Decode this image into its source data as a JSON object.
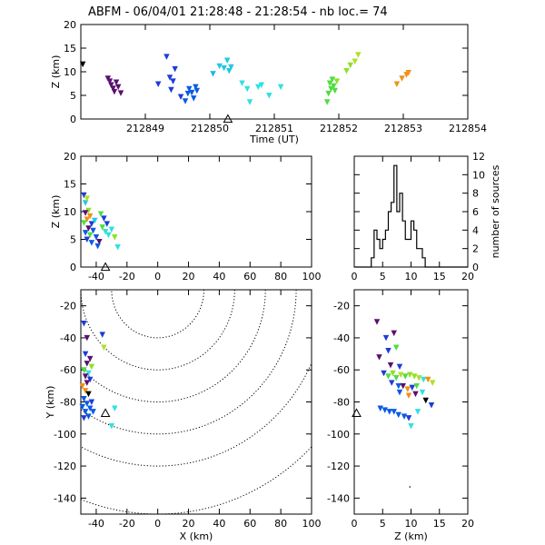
{
  "title": "ABFM - 06/04/01 21:28:48 - 21:28:54 - nb loc.=      74",
  "chart_data": [
    {
      "id": "time_z",
      "type": "scatter",
      "xlabel": "Time (UT)",
      "ylabel": "Z (km)",
      "xlim": [
        212848,
        212854
      ],
      "ylim": [
        0,
        20
      ],
      "xticks": [
        "212849",
        "212850",
        "212851",
        "212852",
        "212853",
        "212854"
      ],
      "yticks": [
        "0",
        "5",
        "10",
        "15",
        "20"
      ],
      "station_x": 212850.28,
      "points": [
        {
          "x": 212848.03,
          "y": 11.6,
          "c": "#000000"
        },
        {
          "x": 212848.42,
          "y": 8.6,
          "c": "#5a1070"
        },
        {
          "x": 212848.45,
          "y": 8.0,
          "c": "#5a1070"
        },
        {
          "x": 212848.47,
          "y": 7.2,
          "c": "#5a1070"
        },
        {
          "x": 212848.5,
          "y": 6.5,
          "c": "#5a1070"
        },
        {
          "x": 212848.52,
          "y": 5.8,
          "c": "#5a1070"
        },
        {
          "x": 212848.55,
          "y": 7.8,
          "c": "#5a1070"
        },
        {
          "x": 212848.58,
          "y": 6.8,
          "c": "#5a1070"
        },
        {
          "x": 212848.62,
          "y": 5.5,
          "c": "#5a1070"
        },
        {
          "x": 212849.2,
          "y": 7.4,
          "c": "#1e3cd8"
        },
        {
          "x": 212849.33,
          "y": 13.2,
          "c": "#1e3cd8"
        },
        {
          "x": 212849.38,
          "y": 8.8,
          "c": "#1e3cd8"
        },
        {
          "x": 212849.43,
          "y": 8.0,
          "c": "#1e3cd8"
        },
        {
          "x": 212849.4,
          "y": 6.2,
          "c": "#1e3cd8"
        },
        {
          "x": 212849.46,
          "y": 10.6,
          "c": "#1e3cd8"
        },
        {
          "x": 212849.55,
          "y": 4.7,
          "c": "#1e3cd8"
        },
        {
          "x": 212849.62,
          "y": 3.8,
          "c": "#0a5ae6"
        },
        {
          "x": 212849.66,
          "y": 5.4,
          "c": "#0a5ae6"
        },
        {
          "x": 212849.68,
          "y": 6.4,
          "c": "#0a5ae6"
        },
        {
          "x": 212849.72,
          "y": 5.6,
          "c": "#0a5ae6"
        },
        {
          "x": 212849.75,
          "y": 4.4,
          "c": "#0a5ae6"
        },
        {
          "x": 212849.78,
          "y": 6.8,
          "c": "#0a5ae6"
        },
        {
          "x": 212849.8,
          "y": 6.0,
          "c": "#0a5ae6"
        },
        {
          "x": 212850.05,
          "y": 9.6,
          "c": "#20b8e6"
        },
        {
          "x": 212850.15,
          "y": 11.2,
          "c": "#20c8e6"
        },
        {
          "x": 212850.22,
          "y": 10.8,
          "c": "#20c8e6"
        },
        {
          "x": 212850.27,
          "y": 12.4,
          "c": "#20c8e6"
        },
        {
          "x": 212850.3,
          "y": 10.2,
          "c": "#20c8e6"
        },
        {
          "x": 212850.33,
          "y": 11.0,
          "c": "#20c8e6"
        },
        {
          "x": 212850.5,
          "y": 7.6,
          "c": "#30e0e0"
        },
        {
          "x": 212850.58,
          "y": 6.4,
          "c": "#30e0e0"
        },
        {
          "x": 212850.62,
          "y": 3.6,
          "c": "#30e0e0"
        },
        {
          "x": 212850.75,
          "y": 6.8,
          "c": "#30e0e0"
        },
        {
          "x": 212850.8,
          "y": 7.2,
          "c": "#30e0e0"
        },
        {
          "x": 212850.92,
          "y": 5.0,
          "c": "#30e0e0"
        },
        {
          "x": 212851.1,
          "y": 6.8,
          "c": "#30e0e0"
        },
        {
          "x": 212851.82,
          "y": 3.6,
          "c": "#50dc40"
        },
        {
          "x": 212851.84,
          "y": 5.4,
          "c": "#50dc40"
        },
        {
          "x": 212851.86,
          "y": 7.6,
          "c": "#50dc40"
        },
        {
          "x": 212851.88,
          "y": 6.4,
          "c": "#50dc40"
        },
        {
          "x": 212851.9,
          "y": 8.4,
          "c": "#50dc40"
        },
        {
          "x": 212851.92,
          "y": 7.0,
          "c": "#50dc40"
        },
        {
          "x": 212851.94,
          "y": 6.0,
          "c": "#50dc40"
        },
        {
          "x": 212851.97,
          "y": 8.0,
          "c": "#90e028"
        },
        {
          "x": 212852.12,
          "y": 10.2,
          "c": "#90e028"
        },
        {
          "x": 212852.18,
          "y": 11.4,
          "c": "#90e028"
        },
        {
          "x": 212852.25,
          "y": 12.2,
          "c": "#b0e028"
        },
        {
          "x": 212852.3,
          "y": 13.6,
          "c": "#b0e028"
        },
        {
          "x": 212852.9,
          "y": 7.4,
          "c": "#f09018"
        },
        {
          "x": 212852.98,
          "y": 8.6,
          "c": "#f09018"
        },
        {
          "x": 212853.05,
          "y": 9.4,
          "c": "#f09018"
        },
        {
          "x": 212853.08,
          "y": 9.8,
          "c": "#f09018"
        }
      ]
    },
    {
      "id": "x_z",
      "type": "scatter",
      "xlabel": "",
      "ylabel": "Z (km)",
      "xlim": [
        -50,
        100
      ],
      "ylim": [
        0,
        20
      ],
      "xticks": [
        "-40",
        "-20",
        "0",
        "20",
        "40",
        "60",
        "80",
        "100"
      ],
      "yticks": [
        "0",
        "5",
        "10",
        "15",
        "20"
      ],
      "station": {
        "x": -34,
        "y": -0.8
      },
      "points": [
        {
          "x": -48,
          "y": 13.0,
          "c": "#1e3cd8"
        },
        {
          "x": -47,
          "y": 11.6,
          "c": "#20c8e6"
        },
        {
          "x": -46,
          "y": 12.4,
          "c": "#b0e028"
        },
        {
          "x": -45,
          "y": 10.2,
          "c": "#90e028"
        },
        {
          "x": -47,
          "y": 9.8,
          "c": "#5a1070"
        },
        {
          "x": -44,
          "y": 9.2,
          "c": "#f09018"
        },
        {
          "x": -46,
          "y": 8.6,
          "c": "#f09018"
        },
        {
          "x": -48,
          "y": 8.0,
          "c": "#50dc40"
        },
        {
          "x": -43,
          "y": 7.8,
          "c": "#1e3cd8"
        },
        {
          "x": -41,
          "y": 8.4,
          "c": "#20c8e6"
        },
        {
          "x": -45,
          "y": 7.0,
          "c": "#5a1070"
        },
        {
          "x": -42,
          "y": 6.6,
          "c": "#0a5ae6"
        },
        {
          "x": -47,
          "y": 6.2,
          "c": "#0a5ae6"
        },
        {
          "x": -44,
          "y": 5.8,
          "c": "#50dc40"
        },
        {
          "x": -40,
          "y": 5.4,
          "c": "#0a5ae6"
        },
        {
          "x": -46,
          "y": 5.0,
          "c": "#1e3cd8"
        },
        {
          "x": -43,
          "y": 4.4,
          "c": "#0a5ae6"
        },
        {
          "x": -38,
          "y": 4.6,
          "c": "#5a1070"
        },
        {
          "x": -39,
          "y": 3.8,
          "c": "#0a5ae6"
        },
        {
          "x": -36,
          "y": 7.2,
          "c": "#50dc40"
        },
        {
          "x": -34,
          "y": 6.4,
          "c": "#30e0e0"
        },
        {
          "x": -32,
          "y": 5.8,
          "c": "#30e0e0"
        },
        {
          "x": -30,
          "y": 6.8,
          "c": "#30e0e0"
        },
        {
          "x": -28,
          "y": 5.4,
          "c": "#90e028"
        },
        {
          "x": -26,
          "y": 3.6,
          "c": "#30e0e0"
        },
        {
          "x": -35,
          "y": 8.8,
          "c": "#1e3cd8"
        },
        {
          "x": -37,
          "y": 9.6,
          "c": "#50dc40"
        },
        {
          "x": -33,
          "y": 7.8,
          "c": "#1e3cd8"
        }
      ]
    },
    {
      "id": "histogram",
      "type": "bar",
      "xlabel": "",
      "ylabel": "number of sources",
      "xlim": [
        0,
        20
      ],
      "ylim": [
        0,
        12
      ],
      "xticks": [
        "0",
        "5",
        "10",
        "15",
        "20"
      ],
      "yticks": [
        "0",
        "2",
        "4",
        "6",
        "8",
        "10",
        "12"
      ],
      "bin_width": 0.5,
      "bins_start": 3,
      "counts": [
        1,
        4,
        3,
        2,
        3,
        4,
        6,
        7,
        11,
        6,
        8,
        5,
        3,
        3,
        5,
        4,
        2,
        2,
        1
      ]
    },
    {
      "id": "x_y",
      "type": "scatter",
      "xlabel": "X (km)",
      "ylabel": "Y (km)",
      "xlim": [
        -50,
        100
      ],
      "ylim": [
        -150,
        -10
      ],
      "xticks": [
        "-40",
        "-20",
        "0",
        "20",
        "40",
        "60",
        "80",
        "100"
      ],
      "yticks": [
        "-140",
        "-120",
        "-100",
        "-80",
        "-60",
        "-40",
        "-20"
      ],
      "station": {
        "x": -34,
        "y": -87
      },
      "contour_center": [
        0,
        -10
      ],
      "contour_radii": [
        30,
        50,
        70,
        90,
        110,
        140
      ],
      "points": [
        {
          "x": -48,
          "y": -31,
          "c": "#1e3cd8"
        },
        {
          "x": -46,
          "y": -40,
          "c": "#5a1070"
        },
        {
          "x": -36,
          "y": -38,
          "c": "#1e3cd8"
        },
        {
          "x": -35,
          "y": -46,
          "c": "#b0e028"
        },
        {
          "x": -47,
          "y": -50,
          "c": "#1e3cd8"
        },
        {
          "x": -44,
          "y": -53,
          "c": "#5a1070"
        },
        {
          "x": -46,
          "y": -56,
          "c": "#5a1070"
        },
        {
          "x": -43,
          "y": -58,
          "c": "#90e028"
        },
        {
          "x": -48,
          "y": -60,
          "c": "#50dc40"
        },
        {
          "x": -45,
          "y": -62,
          "c": "#30e0e0"
        },
        {
          "x": -47,
          "y": -64,
          "c": "#5a1070"
        },
        {
          "x": -44,
          "y": -66,
          "c": "#1e3cd8"
        },
        {
          "x": -46,
          "y": -68,
          "c": "#5a1070"
        },
        {
          "x": -49,
          "y": -70,
          "c": "#f09018"
        },
        {
          "x": -47,
          "y": -73,
          "c": "#f09018"
        },
        {
          "x": -45,
          "y": -75,
          "c": "#000000"
        },
        {
          "x": -48,
          "y": -78,
          "c": "#0a5ae6"
        },
        {
          "x": -46,
          "y": -81,
          "c": "#0a5ae6"
        },
        {
          "x": -49,
          "y": -83,
          "c": "#0a5ae6"
        },
        {
          "x": -44,
          "y": -84,
          "c": "#0a5ae6"
        },
        {
          "x": -47,
          "y": -86,
          "c": "#0a5ae6"
        },
        {
          "x": -42,
          "y": -86,
          "c": "#0a5ae6"
        },
        {
          "x": -45,
          "y": -89,
          "c": "#0a5ae6"
        },
        {
          "x": -48,
          "y": -90,
          "c": "#1e3cd8"
        },
        {
          "x": -43,
          "y": -80,
          "c": "#1e3cd8"
        },
        {
          "x": -28,
          "y": -84,
          "c": "#30e0e0"
        },
        {
          "x": -30,
          "y": -95,
          "c": "#30e0e0"
        }
      ]
    },
    {
      "id": "z_y",
      "type": "scatter",
      "xlabel": "Z (km)",
      "ylabel": "",
      "xlim": [
        0,
        20
      ],
      "ylim": [
        -150,
        -10
      ],
      "xticks": [
        "0",
        "5",
        "10",
        "15",
        "20"
      ],
      "yticks": [
        "-140",
        "-120",
        "-100",
        "-80",
        "-60",
        "-40",
        "-20"
      ],
      "station": {
        "x": 0.4,
        "y": -87
      },
      "points": [
        {
          "x": 4.0,
          "y": -30,
          "c": "#5a1070"
        },
        {
          "x": 5.6,
          "y": -40,
          "c": "#1e3cd8"
        },
        {
          "x": 7.0,
          "y": -37,
          "c": "#5a1070"
        },
        {
          "x": 4.4,
          "y": -52,
          "c": "#5a1070"
        },
        {
          "x": 6.0,
          "y": -48,
          "c": "#1e3cd8"
        },
        {
          "x": 7.4,
          "y": -46,
          "c": "#50dc40"
        },
        {
          "x": 8.0,
          "y": -58,
          "c": "#1e3cd8"
        },
        {
          "x": 6.4,
          "y": -57,
          "c": "#5a1070"
        },
        {
          "x": 5.2,
          "y": -62,
          "c": "#1e3cd8"
        },
        {
          "x": 6.0,
          "y": -64,
          "c": "#50dc40"
        },
        {
          "x": 6.8,
          "y": -62,
          "c": "#90e028"
        },
        {
          "x": 7.4,
          "y": -65,
          "c": "#50dc40"
        },
        {
          "x": 8.2,
          "y": -63,
          "c": "#b0e028"
        },
        {
          "x": 9.0,
          "y": -64,
          "c": "#50dc40"
        },
        {
          "x": 9.8,
          "y": -63,
          "c": "#90e028"
        },
        {
          "x": 10.6,
          "y": -64,
          "c": "#90e028"
        },
        {
          "x": 11.4,
          "y": -65,
          "c": "#b0e028"
        },
        {
          "x": 12.2,
          "y": -66,
          "c": "#30e0e0"
        },
        {
          "x": 13.0,
          "y": -66,
          "c": "#f09018"
        },
        {
          "x": 13.8,
          "y": -68,
          "c": "#b0e028"
        },
        {
          "x": 6.6,
          "y": -68,
          "c": "#1e3cd8"
        },
        {
          "x": 7.8,
          "y": -70,
          "c": "#0a5ae6"
        },
        {
          "x": 8.6,
          "y": -70,
          "c": "#5a1070"
        },
        {
          "x": 9.4,
          "y": -72,
          "c": "#f09018"
        },
        {
          "x": 10.2,
          "y": -71,
          "c": "#1e3cd8"
        },
        {
          "x": 11.0,
          "y": -70,
          "c": "#50dc40"
        },
        {
          "x": 8.0,
          "y": -74,
          "c": "#0a5ae6"
        },
        {
          "x": 9.6,
          "y": -76,
          "c": "#f09018"
        },
        {
          "x": 10.8,
          "y": -75,
          "c": "#5a1070"
        },
        {
          "x": 12.0,
          "y": -74,
          "c": "#30e0e0"
        },
        {
          "x": 4.6,
          "y": -84,
          "c": "#0a5ae6"
        },
        {
          "x": 5.4,
          "y": -85,
          "c": "#0a5ae6"
        },
        {
          "x": 6.2,
          "y": -86,
          "c": "#0a5ae6"
        },
        {
          "x": 7.0,
          "y": -86,
          "c": "#0a5ae6"
        },
        {
          "x": 7.8,
          "y": -88,
          "c": "#0a5ae6"
        },
        {
          "x": 8.8,
          "y": -89,
          "c": "#0a5ae6"
        },
        {
          "x": 9.6,
          "y": -90,
          "c": "#1e3cd8"
        },
        {
          "x": 13.6,
          "y": -82,
          "c": "#1e3cd8"
        },
        {
          "x": 12.6,
          "y": -79,
          "c": "#000000"
        },
        {
          "x": 11.2,
          "y": -86,
          "c": "#30e0e0"
        },
        {
          "x": 10.0,
          "y": -95,
          "c": "#30e0e0"
        },
        {
          "x": 9.8,
          "y": -133,
          "c": "#000000"
        }
      ]
    }
  ]
}
